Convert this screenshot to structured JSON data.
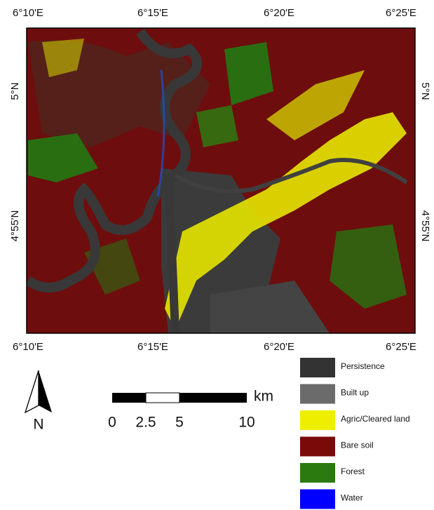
{
  "map": {
    "top_labels": [
      "6°10'E",
      "6°15'E",
      "6°20'E",
      "6°25'E"
    ],
    "bottom_labels": [
      "6°10'E",
      "6°15'E",
      "6°20'E",
      "6°25'E"
    ],
    "left_labels": [
      "5°N",
      "4°55'N"
    ],
    "right_labels": [
      "5°N",
      "4°55'N"
    ],
    "north": "N",
    "scale": {
      "unit": "km",
      "labels": [
        "0",
        "2.5",
        "5",
        "10"
      ]
    },
    "legend": [
      {
        "label": "Persistence",
        "color": "#333333"
      },
      {
        "label": "Built up",
        "color": "#6b6b6b"
      },
      {
        "label": "Agric/Cleared land",
        "color": "#eeee00"
      },
      {
        "label": "Bare soil",
        "color": "#7a0a0a"
      },
      {
        "label": "Forest",
        "color": "#2a7a10"
      },
      {
        "label": "Water",
        "color": "#0000ff"
      }
    ]
  }
}
